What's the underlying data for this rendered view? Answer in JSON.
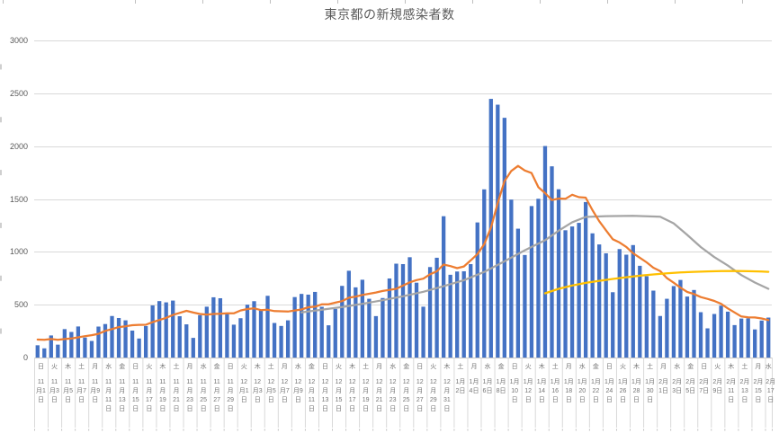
{
  "chart_data": {
    "type": "bar",
    "title": "東京都の新規感染者数",
    "xlabel": "",
    "ylabel": "",
    "ylim": [
      0,
      3000
    ],
    "y_ticks": [
      "0",
      "500",
      "1000",
      "1500",
      "2000",
      "2500",
      "3000"
    ],
    "grid": true,
    "legend": "none",
    "x_start_date": "11月1日",
    "x_end_date": "2月17日",
    "x_tick_every_n_days": 2,
    "x_ticks": [
      {
        "w": "日",
        "d": "11月1日"
      },
      {
        "w": "火",
        "d": "11月3日"
      },
      {
        "w": "木",
        "d": "11月5日"
      },
      {
        "w": "土",
        "d": "11月7日"
      },
      {
        "w": "月",
        "d": "11月9日"
      },
      {
        "w": "水",
        "d": "11月11日"
      },
      {
        "w": "金",
        "d": "11月13日"
      },
      {
        "w": "日",
        "d": "11月15日"
      },
      {
        "w": "火",
        "d": "11月17日"
      },
      {
        "w": "木",
        "d": "11月19日"
      },
      {
        "w": "土",
        "d": "11月21日"
      },
      {
        "w": "月",
        "d": "11月23日"
      },
      {
        "w": "水",
        "d": "11月25日"
      },
      {
        "w": "金",
        "d": "11月27日"
      },
      {
        "w": "日",
        "d": "11月29日"
      },
      {
        "w": "火",
        "d": "12月1日"
      },
      {
        "w": "木",
        "d": "12月3日"
      },
      {
        "w": "土",
        "d": "12月5日"
      },
      {
        "w": "月",
        "d": "12月7日"
      },
      {
        "w": "水",
        "d": "12月9日"
      },
      {
        "w": "金",
        "d": "12月11日"
      },
      {
        "w": "日",
        "d": "12月13日"
      },
      {
        "w": "火",
        "d": "12月15日"
      },
      {
        "w": "木",
        "d": "12月17日"
      },
      {
        "w": "土",
        "d": "12月19日"
      },
      {
        "w": "月",
        "d": "12月21日"
      },
      {
        "w": "水",
        "d": "12月23日"
      },
      {
        "w": "金",
        "d": "12月25日"
      },
      {
        "w": "日",
        "d": "12月27日"
      },
      {
        "w": "火",
        "d": "12月29日"
      },
      {
        "w": "木",
        "d": "12月31日"
      },
      {
        "w": "土",
        "d": "1月2日"
      },
      {
        "w": "月",
        "d": "1月4日"
      },
      {
        "w": "水",
        "d": "1月6日"
      },
      {
        "w": "金",
        "d": "1月8日"
      },
      {
        "w": "日",
        "d": "1月10日"
      },
      {
        "w": "火",
        "d": "1月12日"
      },
      {
        "w": "木",
        "d": "1月14日"
      },
      {
        "w": "土",
        "d": "1月16日"
      },
      {
        "w": "月",
        "d": "1月18日"
      },
      {
        "w": "水",
        "d": "1月20日"
      },
      {
        "w": "金",
        "d": "1月22日"
      },
      {
        "w": "日",
        "d": "1月24日"
      },
      {
        "w": "火",
        "d": "1月26日"
      },
      {
        "w": "木",
        "d": "1月28日"
      },
      {
        "w": "土",
        "d": "1月30日"
      },
      {
        "w": "月",
        "d": "2月1日"
      },
      {
        "w": "水",
        "d": "2月3日"
      },
      {
        "w": "金",
        "d": "2月5日"
      },
      {
        "w": "日",
        "d": "2月7日"
      },
      {
        "w": "火",
        "d": "2月9日"
      },
      {
        "w": "木",
        "d": "2月11日"
      },
      {
        "w": "土",
        "d": "2月13日"
      },
      {
        "w": "月",
        "d": "2月15日"
      },
      {
        "w": "水",
        "d": "2月17日"
      }
    ],
    "bars": {
      "name": "daily-new-cases",
      "color": "#4472C4",
      "values": [
        116,
        87,
        209,
        122,
        269,
        242,
        294,
        189,
        157,
        293,
        317,
        393,
        374,
        352,
        255,
        180,
        298,
        493,
        534,
        522,
        539,
        391,
        314,
        186,
        401,
        481,
        570,
        561,
        418,
        311,
        372,
        500,
        533,
        449,
        584,
        327,
        299,
        352,
        572,
        602,
        595,
        621,
        480,
        305,
        460,
        678,
        821,
        664,
        736,
        556,
        392,
        563,
        748,
        888,
        884,
        949,
        708,
        481,
        856,
        944,
        1337,
        783,
        814,
        816,
        884,
        1278,
        1591,
        2447,
        2392,
        2268,
        1494,
        1219,
        970,
        1433,
        1502,
        2001,
        1809,
        1592,
        1204,
        1240,
        1274,
        1471,
        1175,
        1070,
        986,
        618,
        1026,
        973,
        1064,
        868,
        769,
        633,
        393,
        556,
        676,
        734,
        577,
        639,
        429,
        276,
        412,
        491,
        434,
        307,
        369,
        371,
        266,
        350,
        378
      ]
    },
    "lines": [
      {
        "name": "orange-7day-moving-average-line",
        "color": "#ED7D31",
        "values": [
          170,
          167,
          175,
          168,
          175,
          180,
          191,
          202,
          212,
          224,
          252,
          269,
          288,
          296,
          306,
          309,
          310,
          335,
          355,
          376,
          403,
          422,
          442,
          426,
          412,
          405,
          412,
          415,
          419,
          418,
          445,
          459,
          466,
          449,
          452,
          439,
          438,
          435,
          445,
          455,
          476,
          481,
          503,
          504,
          519,
          534,
          566,
          576,
          592,
          603,
          615,
          630,
          640,
          650,
          681,
          711,
          733,
          746,
          788,
          816,
          880,
          865,
          846,
          862,
          919,
          979,
          1072,
          1230,
          1460,
          1668,
          1765,
          1813,
          1769,
          1746,
          1611,
          1555,
          1490,
          1504,
          1502,
          1540,
          1517,
          1513,
          1395,
          1289,
          1203,
          1119,
          1089,
          1046,
          987,
          944,
          901,
          850,
          818,
          751,
          708,
          661,
          620,
          601,
          572,
          555,
          535,
          508,
          465,
          427,
          388,
          380,
          379,
          370,
          354
        ]
      },
      {
        "name": "gray-line",
        "color": "#A5A5A5",
        "points": [
          [
            39,
            427
          ],
          [
            42,
            452
          ],
          [
            45,
            478
          ],
          [
            48,
            508
          ],
          [
            51,
            542
          ],
          [
            54,
            580
          ],
          [
            57,
            622
          ],
          [
            60,
            675
          ],
          [
            63,
            732
          ],
          [
            66,
            810
          ],
          [
            69,
            910
          ],
          [
            72,
            1015
          ],
          [
            75,
            1110
          ],
          [
            77,
            1200
          ],
          [
            79,
            1280
          ],
          [
            81,
            1330
          ],
          [
            84,
            1338
          ],
          [
            88,
            1340
          ],
          [
            92,
            1332
          ],
          [
            94,
            1270
          ],
          [
            96,
            1160
          ],
          [
            98,
            1045
          ],
          [
            100,
            950
          ],
          [
            102,
            870
          ],
          [
            104,
            780
          ],
          [
            106,
            710
          ],
          [
            108,
            650
          ]
        ]
      },
      {
        "name": "yellow-line",
        "color": "#FFC000",
        "points": [
          [
            75,
            608
          ],
          [
            77,
            650
          ],
          [
            79,
            682
          ],
          [
            81,
            706
          ],
          [
            83,
            726
          ],
          [
            85,
            744
          ],
          [
            87,
            760
          ],
          [
            89,
            774
          ],
          [
            91,
            786
          ],
          [
            93,
            796
          ],
          [
            95,
            805
          ],
          [
            97,
            811
          ],
          [
            99,
            815
          ],
          [
            101,
            818
          ],
          [
            103,
            819
          ],
          [
            105,
            817
          ],
          [
            107,
            813
          ],
          [
            108,
            811
          ]
        ]
      }
    ],
    "colors": {
      "bar": "#4472C4",
      "ma_line": "#ED7D31",
      "gray_line": "#A5A5A5",
      "yellow_line": "#FFC000",
      "gridline": "#D9D9D9",
      "axis_tick": "#BFBFBF",
      "y_label_text": "#595959",
      "x_label_text": "#757575",
      "title_text": "#595959"
    }
  }
}
